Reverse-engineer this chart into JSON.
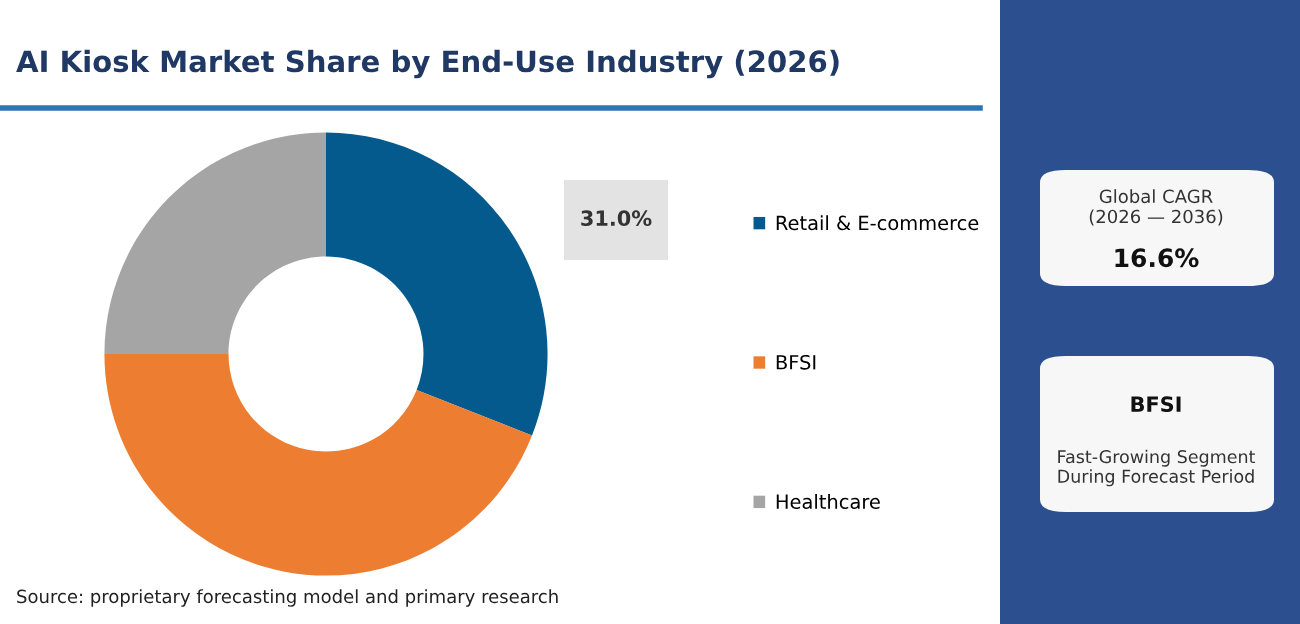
{
  "chart_data": {
    "type": "donut",
    "title": "AI Kiosk Market Share by End-Use Industry (2026)",
    "categories": [
      "Retail & E-commerce",
      "BFSI",
      "Healthcare"
    ],
    "values": [
      31.0,
      44.0,
      25.0
    ],
    "colors": [
      "#045a8d",
      "#ed7d31",
      "#a5a5a5"
    ],
    "value_labels": [
      "31.0%",
      null,
      null
    ],
    "legend": "right",
    "annotations": [
      "Source: proprietary forecasting model and primary research",
      "Global CAGR\n(2026 — 2036)",
      "16.6%",
      "BFSI",
      "Fast-Growing Segment\nDuring Forecast Period"
    ]
  }
}
